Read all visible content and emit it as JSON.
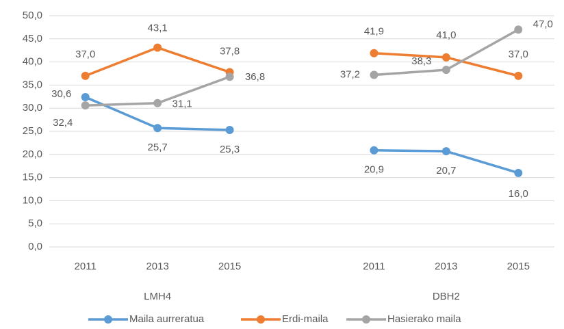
{
  "chart_data": {
    "type": "line",
    "categories": [
      "2011",
      "2013",
      "2015",
      null,
      "2011",
      "2013",
      "2015"
    ],
    "groups": [
      "LMH4",
      "DBH2"
    ],
    "series": [
      {
        "name": "Maila aurreratua",
        "color": "#5b9bd5",
        "values": [
          32.4,
          25.7,
          25.3,
          null,
          20.9,
          20.7,
          16.0
        ],
        "value_labels": [
          "32,4",
          "25,7",
          "25,3",
          null,
          "20,9",
          "20,7",
          "16,0"
        ]
      },
      {
        "name": "Erdi-maila",
        "color": "#ed7d31",
        "values": [
          37.0,
          43.1,
          37.8,
          null,
          41.9,
          41.0,
          37.0
        ],
        "value_labels": [
          "37,0",
          "43,1",
          "37,8",
          null,
          "41,9",
          "41,0",
          "37,0"
        ]
      },
      {
        "name": "Hasierako maila",
        "color": "#a5a5a5",
        "values": [
          30.6,
          31.1,
          36.8,
          null,
          37.2,
          38.3,
          47.0
        ],
        "value_labels": [
          "30,6",
          "31,1",
          "36,8",
          null,
          "37,2",
          "38,3",
          "47,0"
        ]
      }
    ],
    "ylim": [
      0,
      50
    ],
    "yticks": [
      {
        "value": 0,
        "label": "0,0"
      },
      {
        "value": 5,
        "label": "5,0"
      },
      {
        "value": 10,
        "label": "10,0"
      },
      {
        "value": 15,
        "label": "15,0"
      },
      {
        "value": 20,
        "label": "20,0"
      },
      {
        "value": 25,
        "label": "25,0"
      },
      {
        "value": 30,
        "label": "30,0"
      },
      {
        "value": 35,
        "label": "35,0"
      },
      {
        "value": 40,
        "label": "40,0"
      },
      {
        "value": 45,
        "label": "45,0"
      },
      {
        "value": 50,
        "label": "50,0"
      }
    ],
    "grid": true,
    "legend": "bottom"
  }
}
